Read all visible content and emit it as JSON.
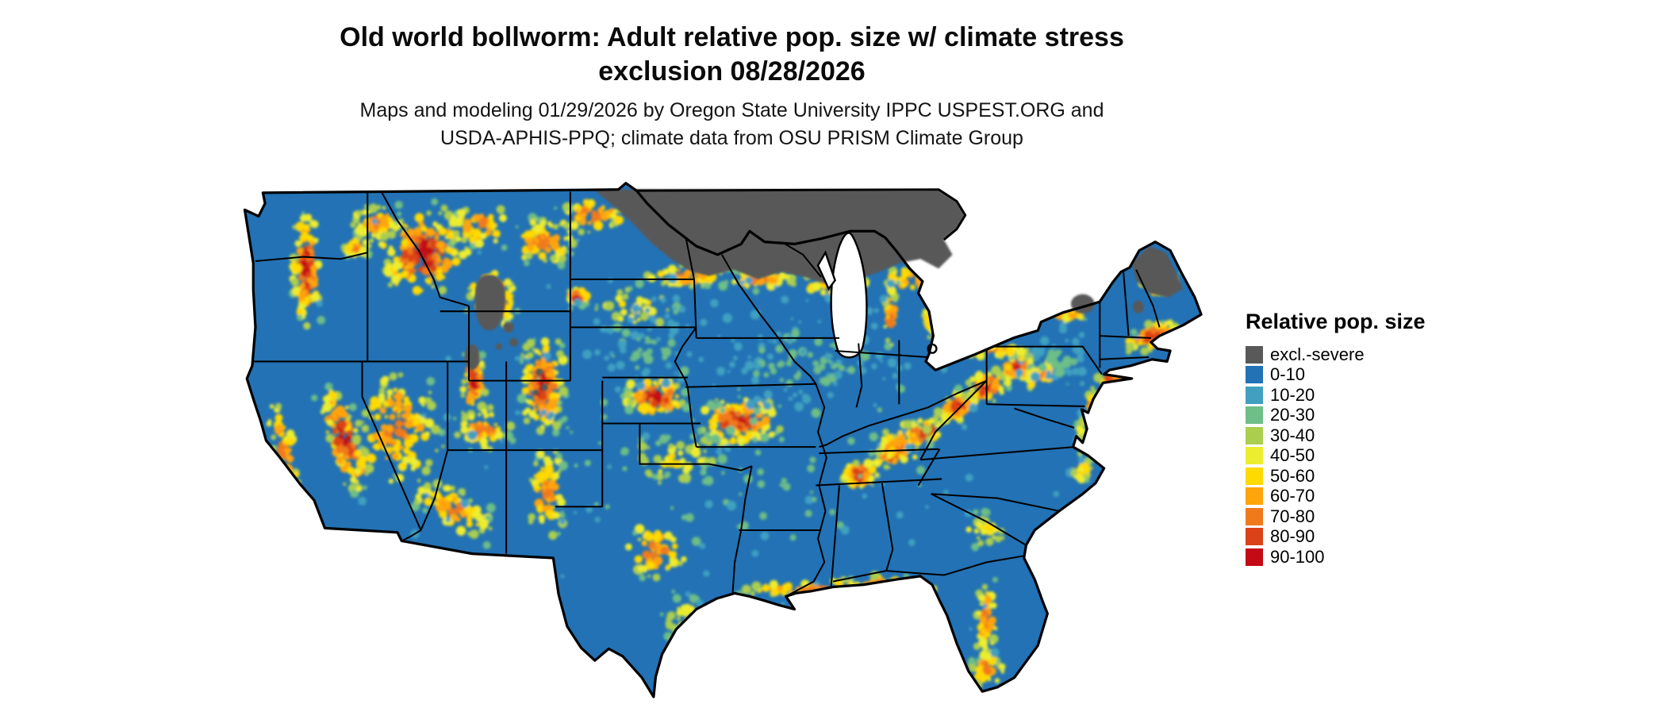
{
  "header": {
    "title_line1": "Old world bollworm: Adult relative pop. size w/ climate stress",
    "title_line2": "exclusion 08/28/2026",
    "subtitle_line1": "Maps and modeling 01/29/2026 by Oregon State University IPPC USPEST.ORG and",
    "subtitle_line2": "USDA-APHIS-PPQ; climate data from OSU PRISM Climate Group"
  },
  "legend": {
    "title": "Relative pop. size",
    "items": [
      {
        "label": "excl.-severe",
        "color": "#595959"
      },
      {
        "label": "0-10",
        "color": "#2272b5"
      },
      {
        "label": "10-20",
        "color": "#41a0c0"
      },
      {
        "label": "20-30",
        "color": "#6dbe87"
      },
      {
        "label": "30-40",
        "color": "#abce4f"
      },
      {
        "label": "40-50",
        "color": "#eded2f"
      },
      {
        "label": "50-60",
        "color": "#ffd902"
      },
      {
        "label": "60-70",
        "color": "#ffa40a"
      },
      {
        "label": "70-80",
        "color": "#f0791c"
      },
      {
        "label": "80-90",
        "color": "#dc4217"
      },
      {
        "label": "90-100",
        "color": "#c40a14"
      }
    ]
  }
}
